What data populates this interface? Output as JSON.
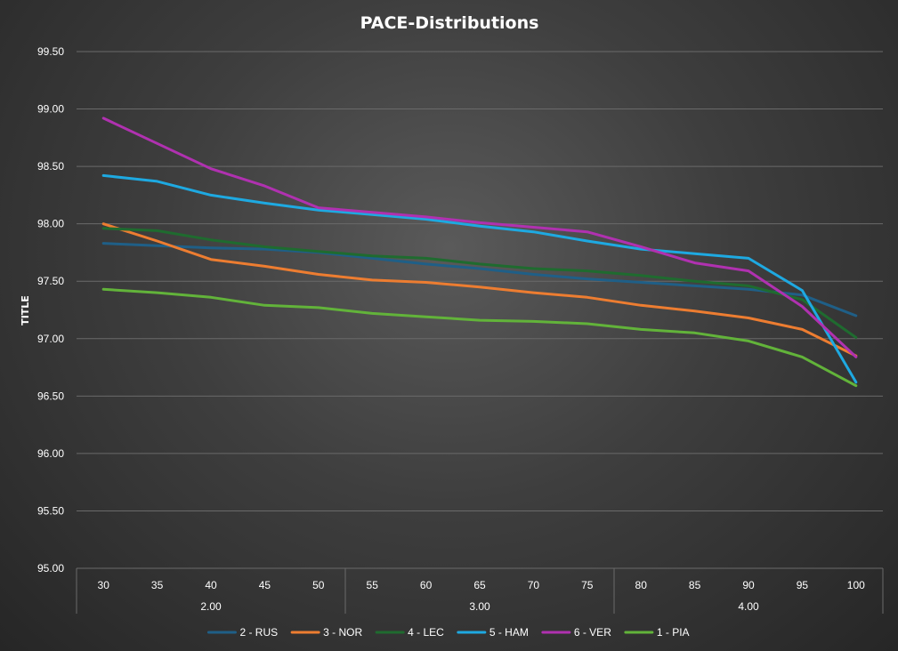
{
  "chart_data": {
    "type": "line",
    "title": "PACE-Distributions",
    "ylabel": "TITLE",
    "xlabel": "",
    "ylim": [
      95.0,
      99.5
    ],
    "yticks": [
      "95.00",
      "95.50",
      "96.00",
      "96.50",
      "97.00",
      "97.50",
      "98.00",
      "98.50",
      "99.00",
      "99.50"
    ],
    "categories": [
      "30",
      "35",
      "40",
      "45",
      "50",
      "55",
      "60",
      "65",
      "70",
      "75",
      "80",
      "85",
      "90",
      "95",
      "100"
    ],
    "groups": [
      {
        "label": "2.00",
        "count": 5
      },
      {
        "label": "3.00",
        "count": 5
      },
      {
        "label": "4.00",
        "count": 5
      }
    ],
    "grid": true,
    "legend_position": "bottom",
    "series": [
      {
        "name": "2 - RUS",
        "color": "#1f5f87",
        "values": [
          97.83,
          97.81,
          97.79,
          97.78,
          97.75,
          97.7,
          97.65,
          97.61,
          97.56,
          97.52,
          97.49,
          97.46,
          97.43,
          97.38,
          97.2
        ]
      },
      {
        "name": "3 - NOR",
        "color": "#ed7d31",
        "values": [
          98.0,
          97.85,
          97.69,
          97.63,
          97.56,
          97.51,
          97.49,
          97.45,
          97.4,
          97.36,
          97.29,
          97.24,
          97.18,
          97.08,
          96.85
        ]
      },
      {
        "name": "4 - LEC",
        "color": "#1f6b2f",
        "values": [
          97.96,
          97.94,
          97.86,
          97.8,
          97.76,
          97.72,
          97.7,
          97.65,
          97.61,
          97.59,
          97.55,
          97.5,
          97.46,
          97.34,
          97.01
        ]
      },
      {
        "name": "5 - HAM",
        "color": "#1ea9e1",
        "values": [
          98.42,
          98.37,
          98.25,
          98.18,
          98.12,
          98.08,
          98.04,
          97.98,
          97.93,
          97.85,
          97.78,
          97.74,
          97.7,
          97.42,
          96.62
        ]
      },
      {
        "name": "6 - VER",
        "color": "#b031b0",
        "values": [
          98.92,
          98.7,
          98.48,
          98.33,
          98.14,
          98.1,
          98.06,
          98.01,
          97.97,
          97.93,
          97.8,
          97.66,
          97.59,
          97.28,
          96.84
        ]
      },
      {
        "name": "1 - PIA",
        "color": "#62b33a",
        "values": [
          97.43,
          97.4,
          97.36,
          97.29,
          97.27,
          97.22,
          97.19,
          97.16,
          97.15,
          97.13,
          97.08,
          97.05,
          96.98,
          96.84,
          96.59
        ]
      }
    ]
  }
}
